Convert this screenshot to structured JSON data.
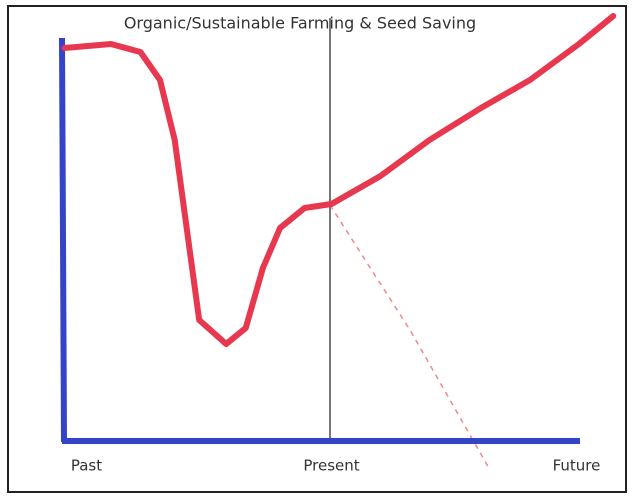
{
  "chart_data": {
    "type": "line",
    "title": "Organic/Sustainable Farming & Seed Saving",
    "x": [
      -0.09,
      0.1,
      0.22,
      0.3,
      0.36,
      0.42,
      0.46,
      0.57,
      0.65,
      0.72,
      0.79,
      0.89,
      1.0,
      1.2,
      1.4,
      1.61,
      1.81,
      2.01,
      2.15
    ],
    "series": [
      {
        "color": "#e8384f",
        "values": [
          98,
          99,
          97,
          90,
          75,
          48,
          30,
          24,
          28,
          43,
          53,
          58,
          59,
          66,
          75,
          83,
          90,
          99,
          106
        ]
      }
    ],
    "xlim": [
      -0.1,
      2.16
    ],
    "ylim": [
      0,
      108
    ],
    "xticks": [
      {
        "value": 0,
        "label": "Past"
      },
      {
        "value": 1,
        "label": "Present"
      },
      {
        "value": 2,
        "label": "Future"
      }
    ],
    "grid": false
  }
}
